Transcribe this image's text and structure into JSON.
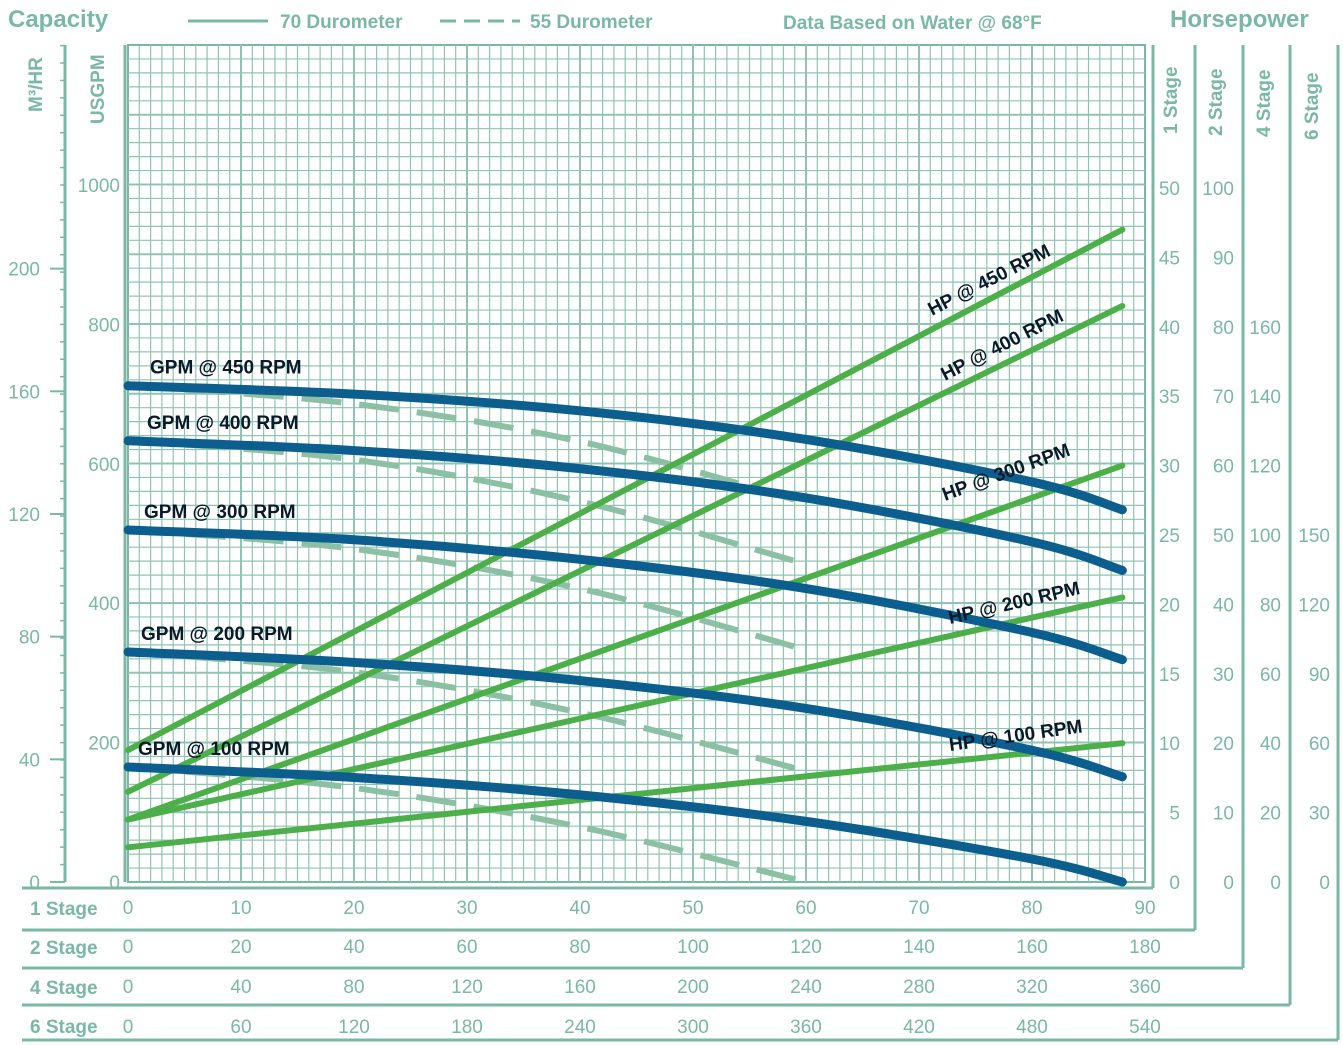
{
  "chart_data": {
    "type": "line",
    "title": "Capacity",
    "right_title": "Horsepower",
    "legend": {
      "solid_label": "70 Durometer",
      "dashed_label": "55 Durometer",
      "placement": "top"
    },
    "note": "Data Based on Water @ 68°F",
    "left_axes": [
      {
        "label": "M³/HR",
        "ticks": [
          "200",
          "160",
          "120",
          "80",
          "40",
          "0"
        ]
      },
      {
        "label": "USGPM",
        "range": [
          0,
          1200
        ],
        "ticks": [
          "1000",
          "800",
          "600",
          "400",
          "200",
          "0"
        ]
      }
    ],
    "right_axes": [
      {
        "label": "1 Stage",
        "range": [
          0,
          60
        ],
        "ticks": [
          "50",
          "45",
          "40",
          "35",
          "30",
          "25",
          "20",
          "15",
          "10",
          "5",
          "0"
        ]
      },
      {
        "label": "2 Stage",
        "ticks": [
          "100",
          "90",
          "80",
          "70",
          "60",
          "50",
          "40",
          "30",
          "20",
          "10",
          "0"
        ]
      },
      {
        "label": "4 Stage",
        "ticks": [
          "160",
          "140",
          "120",
          "100",
          "80",
          "60",
          "40",
          "20",
          "0"
        ]
      },
      {
        "label": "6 Stage",
        "ticks": [
          "150",
          "120",
          "90",
          "60",
          "30",
          "0"
        ]
      }
    ],
    "bottom_axes": [
      {
        "label": "1 Stage",
        "range": [
          0,
          90
        ],
        "ticks": [
          "0",
          "10",
          "20",
          "30",
          "40",
          "50",
          "60",
          "70",
          "80",
          "90"
        ]
      },
      {
        "label": "2 Stage",
        "ticks": [
          "0",
          "20",
          "40",
          "60",
          "80",
          "100",
          "120",
          "140",
          "160",
          "180"
        ]
      },
      {
        "label": "4 Stage",
        "ticks": [
          "0",
          "40",
          "80",
          "120",
          "160",
          "200",
          "240",
          "280",
          "320",
          "360"
        ]
      },
      {
        "label": "6 Stage",
        "ticks": [
          "0",
          "60",
          "120",
          "180",
          "240",
          "300",
          "360",
          "420",
          "480",
          "540"
        ]
      }
    ],
    "grid": true,
    "colors": {
      "frame": "#7ab8a6",
      "grid": "#8fc4b2",
      "gpm_solid": "#0b5e8e",
      "gpm_dashed": "#8cc0a4",
      "hp": "#4caf4a",
      "label": "#0a1a2a"
    },
    "gpm_series": [
      {
        "name": "GPM @ 450 RPM",
        "x": [
          0,
          20,
          40,
          60,
          80,
          88
        ],
        "y": [
          712,
          700,
          676,
          635,
          574,
          534
        ]
      },
      {
        "name": "GPM @ 400 RPM",
        "x": [
          0,
          20,
          40,
          60,
          80,
          88
        ],
        "y": [
          633,
          619,
          593,
          551,
          488,
          447
        ]
      },
      {
        "name": "GPM @ 300 RPM",
        "x": [
          0,
          20,
          40,
          60,
          80,
          88
        ],
        "y": [
          505,
          491,
          463,
          421,
          358,
          319
        ]
      },
      {
        "name": "GPM @ 200 RPM",
        "x": [
          0,
          20,
          40,
          60,
          80,
          88
        ],
        "y": [
          330,
          315,
          289,
          249,
          189,
          151
        ]
      },
      {
        "name": "GPM @ 100 RPM",
        "x": [
          0,
          20,
          40,
          60,
          80,
          88
        ],
        "y": [
          165,
          150,
          125,
          87,
          33,
          0
        ]
      }
    ],
    "gpm_55_series": [
      {
        "x": [
          0,
          20,
          40,
          60
        ],
        "y": [
          712,
          686,
          632,
          544
        ]
      },
      {
        "x": [
          0,
          20,
          40,
          60
        ],
        "y": [
          633,
          606,
          546,
          456
        ]
      },
      {
        "x": [
          0,
          20,
          40,
          60
        ],
        "y": [
          505,
          478,
          421,
          333
        ]
      },
      {
        "x": [
          0,
          20,
          40,
          60
        ],
        "y": [
          330,
          301,
          243,
          159
        ]
      },
      {
        "x": [
          0,
          20,
          40,
          60
        ],
        "y": [
          165,
          135,
          79,
          0
        ]
      }
    ],
    "hp_series": [
      {
        "name": "HP @ 450 RPM",
        "x": [
          0,
          88
        ],
        "y": [
          9.5,
          47
        ]
      },
      {
        "name": "HP @ 400 RPM",
        "x": [
          0,
          88
        ],
        "y": [
          6.5,
          41.5
        ]
      },
      {
        "name": "HP @ 300 RPM",
        "x": [
          0,
          88
        ],
        "y": [
          4.5,
          30
        ]
      },
      {
        "name": "HP @ 200 RPM",
        "x": [
          0,
          88
        ],
        "y": [
          4.5,
          20.5
        ]
      },
      {
        "name": "HP @ 100 RPM",
        "x": [
          0,
          88
        ],
        "y": [
          2.5,
          10
        ]
      }
    ]
  }
}
